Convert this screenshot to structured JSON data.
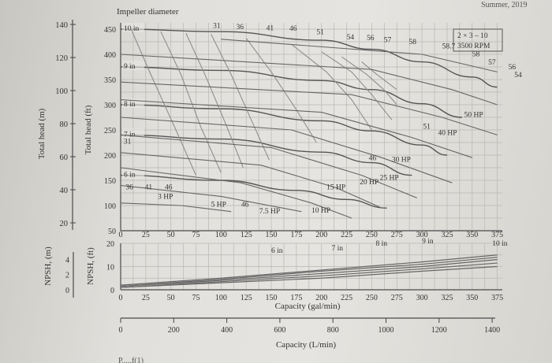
{
  "chart_data": {
    "type": "line",
    "title": "Impeller diameter",
    "corner_text": "Summer, 2019",
    "bottom_text": "P.....f(1)",
    "model_box": {
      "line1": "2 × 3 – 10",
      "line2": "3500 RPM"
    },
    "y_labels": {
      "head_m": "Total head (m)",
      "head_ft": "Total head (ft)",
      "npsh_m": "NPSH, (m)",
      "npsh_ft": "NPSH, (ft)"
    },
    "x_labels": {
      "gpm": "Capacity (gal/min)",
      "lpm": "Capacity (L/min)"
    },
    "x_ticks_gpm": [
      "0",
      "25",
      "50",
      "75",
      "100",
      "125",
      "150",
      "175",
      "200",
      "225",
      "250",
      "275",
      "300",
      "325",
      "350",
      "375"
    ],
    "y_ticks_ft": [
      "50",
      "100",
      "150",
      "200",
      "250",
      "300",
      "350",
      "400",
      "450"
    ],
    "y_ticks_m": [
      "20",
      "40",
      "60",
      "80",
      "100",
      "120",
      "140"
    ],
    "npsh_ticks_ft": [
      "0",
      "10",
      "20"
    ],
    "npsh_ticks_m": [
      "0",
      "2",
      "4"
    ],
    "lpm_ticks": [
      "0",
      "200",
      "400",
      "600",
      "800",
      "1000",
      "1200",
      "1400"
    ],
    "xlim_gpm": [
      0,
      380
    ],
    "ylim_ft": [
      50,
      460
    ],
    "series": [
      {
        "name": "10 in",
        "x": [
          0,
          100,
          200,
          250,
          300,
          350,
          375
        ],
        "y": [
          450,
          445,
          428,
          410,
          385,
          355,
          335
        ]
      },
      {
        "name": "9 in",
        "x": [
          0,
          100,
          200,
          250,
          300,
          340
        ],
        "y": [
          375,
          368,
          348,
          330,
          302,
          275
        ]
      },
      {
        "name": "8 in",
        "x": [
          0,
          100,
          200,
          250,
          300,
          325
        ],
        "y": [
          300,
          292,
          268,
          248,
          220,
          200
        ]
      },
      {
        "name": "7 in",
        "x": [
          0,
          100,
          200,
          250,
          290
        ],
        "y": [
          240,
          232,
          206,
          185,
          160
        ]
      },
      {
        "name": "6 in",
        "x": [
          0,
          100,
          175,
          225,
          265
        ],
        "y": [
          160,
          150,
          130,
          112,
          95
        ]
      }
    ],
    "efficiency_labels": [
      "31",
      "36",
      "41",
      "46",
      "51",
      "54",
      "56",
      "57",
      "58",
      "58.7"
    ],
    "hp_labels": [
      "3 HP",
      "5 HP",
      "7.5 HP",
      "10 HP",
      "15 HP",
      "20 HP",
      "25 HP",
      "30 HP",
      "40 HP",
      "50 HP"
    ],
    "npsh_series": [
      {
        "name": "6 in",
        "x": [
          0,
          100,
          200,
          300,
          375
        ],
        "y": [
          1,
          3,
          5,
          8,
          10
        ]
      },
      {
        "name": "7 in",
        "x": [
          0,
          100,
          200,
          300,
          375
        ],
        "y": [
          1,
          3.5,
          6,
          9,
          11.5
        ]
      },
      {
        "name": "8 in",
        "x": [
          0,
          100,
          200,
          300,
          375
        ],
        "y": [
          1.5,
          4,
          7,
          10,
          13
        ]
      },
      {
        "name": "9 in",
        "x": [
          0,
          100,
          200,
          300,
          375
        ],
        "y": [
          1.5,
          4.5,
          8,
          11,
          14
        ]
      },
      {
        "name": "10 in",
        "x": [
          0,
          100,
          200,
          300,
          375
        ],
        "y": [
          2,
          5,
          8.5,
          12,
          15
        ]
      }
    ],
    "annotations": {
      "impeller": [
        "10 in",
        "9 in",
        "8 in",
        "7 in",
        "6 in"
      ],
      "eff_top": [
        "31",
        "36",
        "41",
        "46",
        "51",
        "54",
        "56",
        "57",
        "58",
        "58.7",
        "58",
        "57",
        "56",
        "54"
      ],
      "eff_left_31": "31",
      "eff_left_row": [
        "36",
        "41",
        "46"
      ],
      "eff_mid": [
        "51",
        "46",
        "46"
      ],
      "hp": [
        "50 HP",
        "40 HP",
        "30 HP",
        "25 HP",
        "20 HP",
        "15 HP",
        "10 HP",
        "7.5 HP",
        "5 HP",
        "3 HP"
      ],
      "npsh_tags": [
        "6 in",
        "7 in",
        "8 in",
        "9 in",
        "10 in"
      ]
    }
  }
}
